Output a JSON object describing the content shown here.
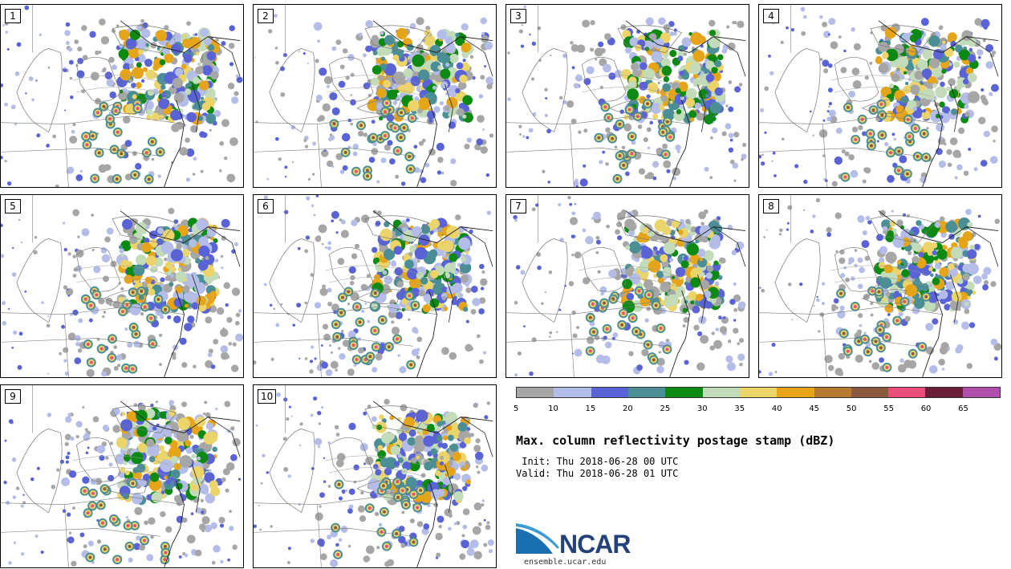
{
  "panels": [
    "1",
    "2",
    "3",
    "4",
    "5",
    "6",
    "7",
    "8",
    "9",
    "10"
  ],
  "colorbar": {
    "colors": [
      "#a6a6a6",
      "#b4bde8",
      "#5963d6",
      "#4b8e96",
      "#0d8a13",
      "#c2dcb9",
      "#ebd46a",
      "#e6a519",
      "#b77a30",
      "#8b5a3e",
      "#ea4f7c",
      "#6b1d3a",
      "#b04fae"
    ],
    "ticks": [
      "5",
      "10",
      "15",
      "20",
      "25",
      "30",
      "35",
      "40",
      "45",
      "50",
      "55",
      "60",
      "65"
    ]
  },
  "title": "Max. column reflectivity postage stamp (dBZ)",
  "init": " Init: Thu 2018-06-28 00 UTC",
  "valid": "Valid: Thu 2018-06-28 01 UTC",
  "logo_text": "NCAR",
  "url": "ensemble.ucar.edu"
}
